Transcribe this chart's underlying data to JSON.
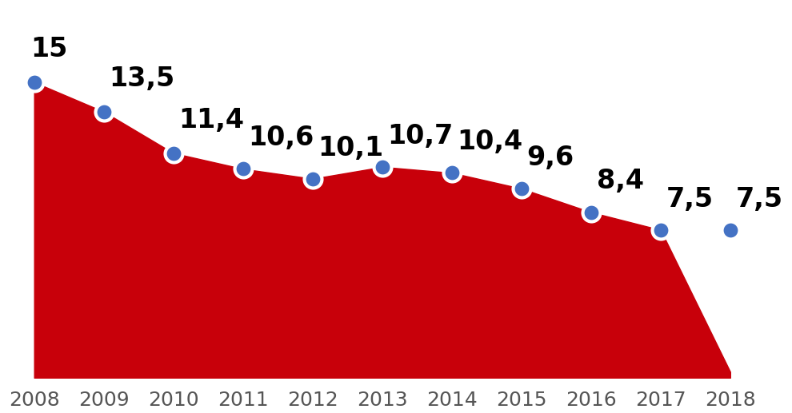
{
  "years": [
    2008,
    2009,
    2010,
    2011,
    2012,
    2013,
    2014,
    2015,
    2016,
    2017,
    2018
  ],
  "values": [
    15,
    13.5,
    11.4,
    10.6,
    10.1,
    10.7,
    10.4,
    9.6,
    8.4,
    7.5,
    7.5
  ],
  "area_values": [
    15,
    13.5,
    11.4,
    10.6,
    10.1,
    10.7,
    10.4,
    9.6,
    8.4,
    7.5,
    0.3
  ],
  "labels": [
    "15",
    "13,5",
    "11,4",
    "10,6",
    "10,1",
    "10,7",
    "10,4",
    "9,6",
    "8,4",
    "7,5",
    "7,5"
  ],
  "label_offsets_x": [
    -0.05,
    0.08,
    0.08,
    0.08,
    0.08,
    0.08,
    0.08,
    0.08,
    0.08,
    0.08,
    0.08
  ],
  "label_offsets_y": [
    1.0,
    1.0,
    1.0,
    0.9,
    0.9,
    0.9,
    0.9,
    0.9,
    0.9,
    0.9,
    0.9
  ],
  "area_color": "#C8000A",
  "dot_color": "#4472C4",
  "dot_edge_color": "#FFFFFF",
  "background_color": "#FFFFFF",
  "label_fontsize": 24,
  "label_fontweight": "bold",
  "tick_fontsize": 18,
  "ylim": [
    0,
    19
  ],
  "xlim": [
    2007.6,
    2018.5
  ]
}
